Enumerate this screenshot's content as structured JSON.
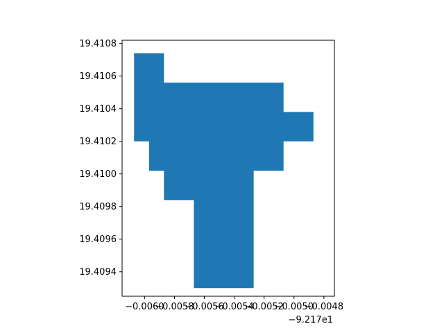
{
  "chart_data": {
    "type": "area",
    "title": "",
    "xlabel": "",
    "ylabel": "",
    "x_offset_label": "−9.217e1",
    "xlim": [
      -0.00615,
      -0.00473
    ],
    "ylim": [
      19.40925,
      19.41082
    ],
    "xticks": [
      -0.006,
      -0.0058,
      -0.0056,
      -0.0054,
      -0.0052,
      -0.005,
      -0.0048
    ],
    "xtick_labels": [
      "−0.0060",
      "−0.0058",
      "−0.0056",
      "−0.0054",
      "−0.0052",
      "−0.0050",
      "−0.0048"
    ],
    "yticks": [
      19.4094,
      19.4096,
      19.4098,
      19.41,
      19.4102,
      19.4104,
      19.4106,
      19.4108
    ],
    "ytick_labels": [
      "19.4094",
      "19.4096",
      "19.4098",
      "19.4100",
      "19.4102",
      "19.4104",
      "19.4106",
      "19.4108"
    ],
    "grid": false,
    "series": [
      {
        "color": "#1f77b4",
        "polygon": [
          [
            -0.00607,
            19.41074
          ],
          [
            -0.00587,
            19.41074
          ],
          [
            -0.00587,
            19.41056
          ],
          [
            -0.00507,
            19.41056
          ],
          [
            -0.00507,
            19.41038
          ],
          [
            -0.00487,
            19.41038
          ],
          [
            -0.00487,
            19.4102
          ],
          [
            -0.00507,
            19.4102
          ],
          [
            -0.00507,
            19.41002
          ],
          [
            -0.00527,
            19.41002
          ],
          [
            -0.00527,
            19.4093
          ],
          [
            -0.00567,
            19.4093
          ],
          [
            -0.00567,
            19.40984
          ],
          [
            -0.00587,
            19.40984
          ],
          [
            -0.00587,
            19.41002
          ],
          [
            -0.00597,
            19.41002
          ],
          [
            -0.00597,
            19.4102
          ],
          [
            -0.00607,
            19.4102
          ]
        ]
      }
    ]
  }
}
